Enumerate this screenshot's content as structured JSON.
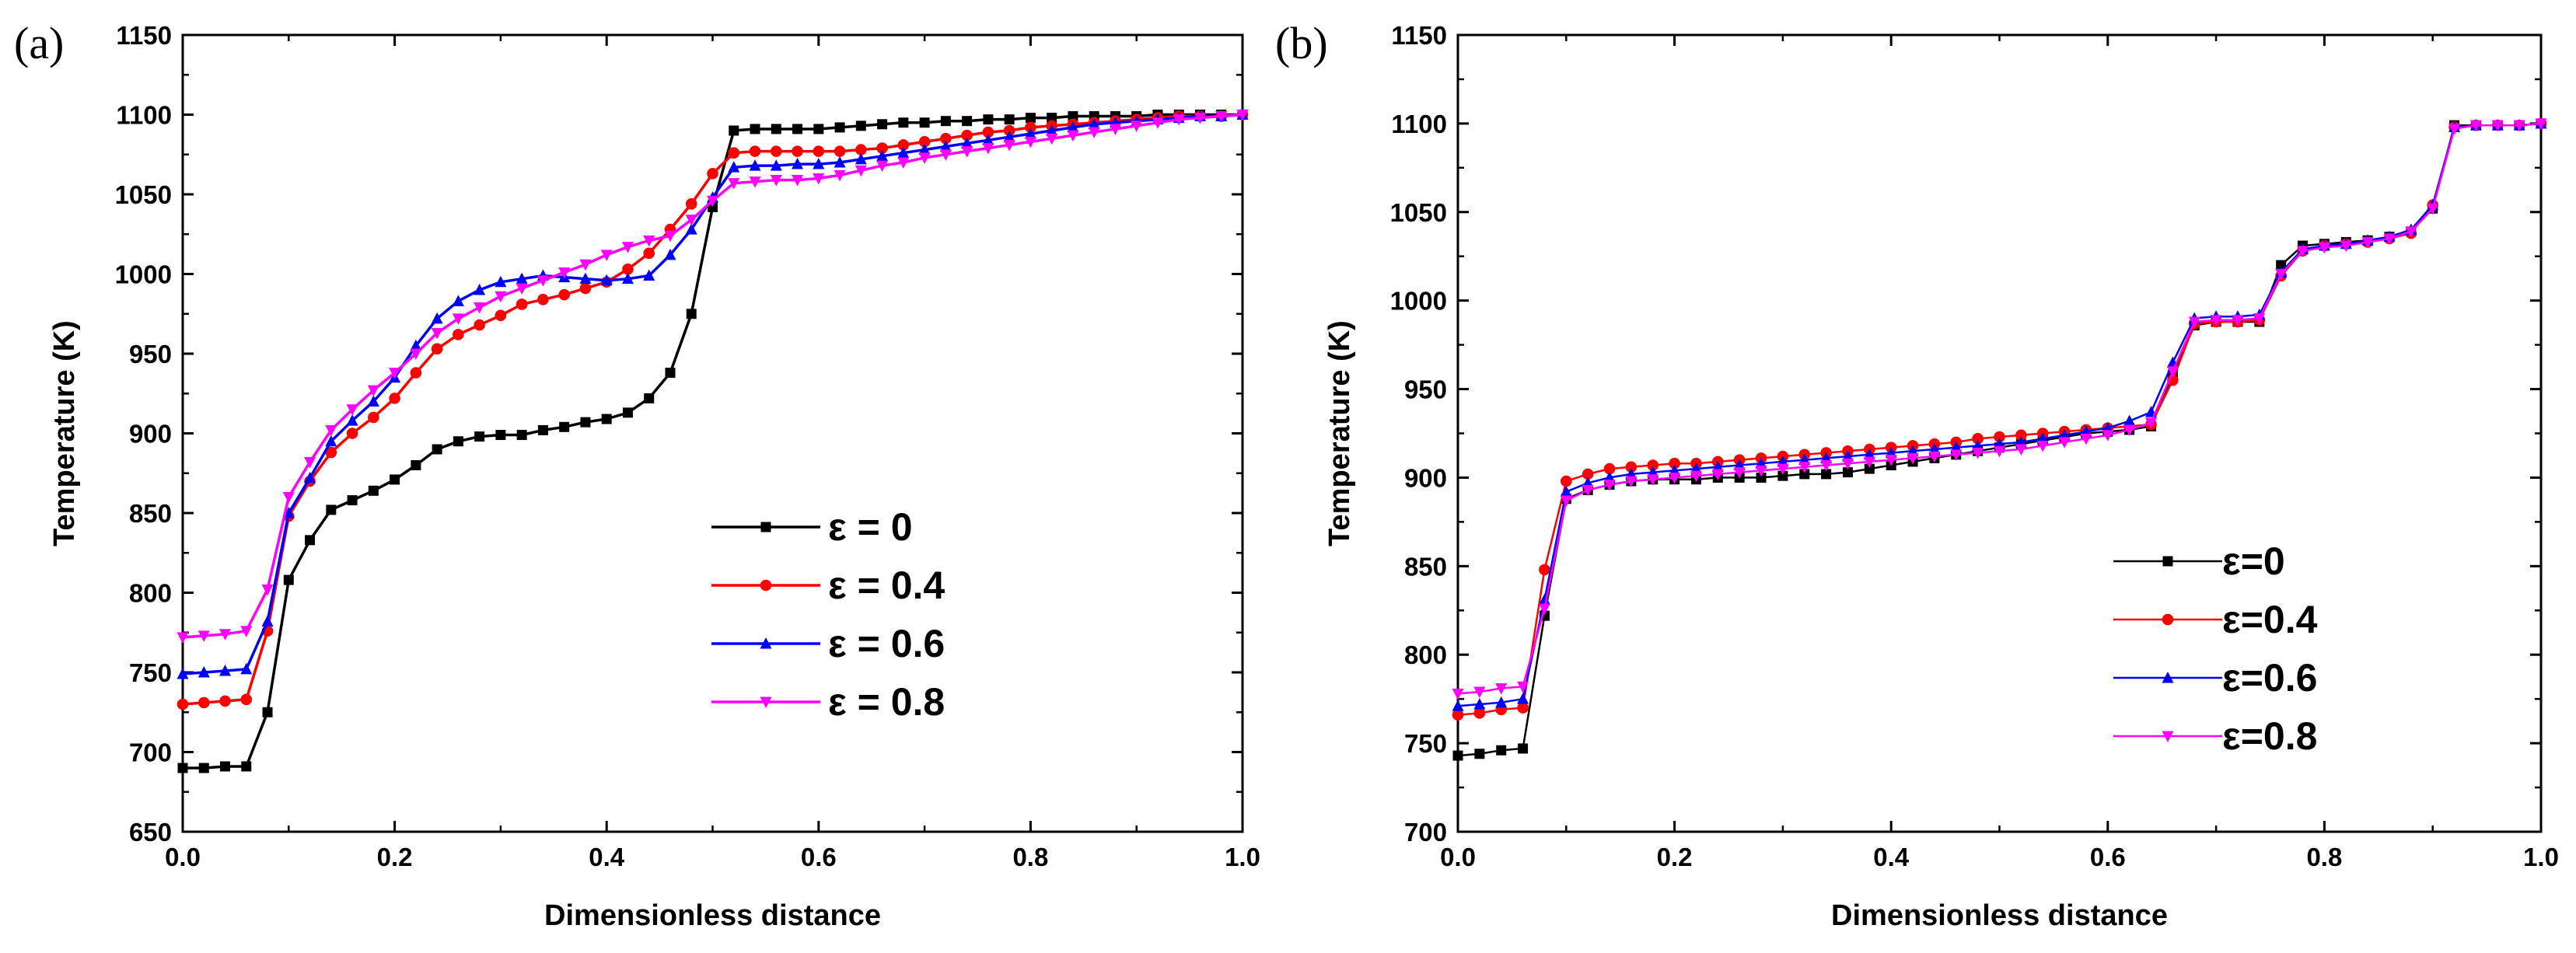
{
  "figure": {
    "panel_labels": [
      "(a)",
      "(b)"
    ]
  },
  "chart_data": [
    {
      "type": "line",
      "panel": "(a)",
      "xlabel": "Dimensionless distance",
      "ylabel": "Temperature (K)",
      "xlim": [
        0.0,
        1.0
      ],
      "ylim": [
        650,
        1150
      ],
      "xticks": [
        0.0,
        0.2,
        0.4,
        0.6,
        0.8,
        1.0
      ],
      "xtick_labels": [
        "0.0",
        "0.2",
        "0.4",
        "0.6",
        "0.8",
        "1.0"
      ],
      "yticks": [
        650,
        700,
        750,
        800,
        850,
        900,
        950,
        1000,
        1050,
        1100,
        1150
      ],
      "ytick_labels": [
        "650",
        "700",
        "750",
        "800",
        "850",
        "900",
        "950",
        "1000",
        "1050",
        "1100",
        "1150"
      ],
      "legend_position": "center-right",
      "x": [
        0.0,
        0.02,
        0.04,
        0.06,
        0.08,
        0.1,
        0.12,
        0.14,
        0.16,
        0.18,
        0.2,
        0.22,
        0.24,
        0.26,
        0.28,
        0.3,
        0.32,
        0.34,
        0.36,
        0.38,
        0.4,
        0.42,
        0.44,
        0.46,
        0.48,
        0.5,
        0.52,
        0.54,
        0.56,
        0.58,
        0.6,
        0.62,
        0.64,
        0.66,
        0.68,
        0.7,
        0.72,
        0.74,
        0.76,
        0.78,
        0.8,
        0.82,
        0.84,
        0.86,
        0.88,
        0.9,
        0.92,
        0.94,
        0.96,
        0.98,
        1.0
      ],
      "series": [
        {
          "name": "ε = 0",
          "color": "#000000",
          "marker": "square",
          "values": [
            690,
            690,
            691,
            691,
            725,
            808,
            833,
            852,
            858,
            864,
            871,
            880,
            890,
            895,
            898,
            899,
            899,
            902,
            904,
            907,
            909,
            913,
            922,
            938,
            975,
            1042,
            1090,
            1091,
            1091,
            1091,
            1091,
            1092,
            1093,
            1094,
            1095,
            1095,
            1096,
            1096,
            1097,
            1097,
            1098,
            1098,
            1099,
            1099,
            1099,
            1099,
            1100,
            1100,
            1100,
            1100,
            1100
          ]
        },
        {
          "name": "ε = 0.4",
          "color": "#ff0000",
          "marker": "circle",
          "values": [
            730,
            731,
            732,
            733,
            776,
            848,
            870,
            888,
            900,
            910,
            922,
            938,
            953,
            962,
            968,
            974,
            981,
            984,
            987,
            991,
            995,
            1003,
            1013,
            1028,
            1044,
            1063,
            1076,
            1077,
            1077,
            1077,
            1077,
            1077,
            1078,
            1079,
            1081,
            1083,
            1085,
            1087,
            1089,
            1090,
            1092,
            1093,
            1094,
            1095,
            1096,
            1097,
            1098,
            1099,
            1099,
            1099,
            1100
          ]
        },
        {
          "name": "ε = 0.6",
          "color": "#0000ff",
          "marker": "triangle-up",
          "values": [
            749,
            750,
            751,
            752,
            782,
            850,
            872,
            895,
            908,
            920,
            935,
            955,
            972,
            983,
            990,
            995,
            997,
            999,
            998,
            997,
            996,
            997,
            999,
            1012,
            1028,
            1048,
            1067,
            1068,
            1068,
            1069,
            1069,
            1070,
            1072,
            1074,
            1076,
            1078,
            1080,
            1082,
            1084,
            1086,
            1088,
            1090,
            1092,
            1094,
            1095,
            1096,
            1097,
            1098,
            1099,
            1099,
            1100
          ]
        },
        {
          "name": "ε = 0.8",
          "color": "#ff00ff",
          "marker": "triangle-down",
          "values": [
            772,
            773,
            774,
            776,
            802,
            860,
            882,
            902,
            915,
            927,
            938,
            950,
            963,
            972,
            979,
            986,
            991,
            996,
            1001,
            1006,
            1012,
            1017,
            1021,
            1024,
            1034,
            1046,
            1057,
            1058,
            1059,
            1059,
            1060,
            1062,
            1065,
            1068,
            1070,
            1073,
            1075,
            1077,
            1079,
            1081,
            1083,
            1085,
            1087,
            1089,
            1091,
            1093,
            1095,
            1097,
            1098,
            1099,
            1100
          ]
        }
      ]
    },
    {
      "type": "line",
      "panel": "(b)",
      "xlabel": "Dimensionless distance",
      "ylabel": "Temperature (K)",
      "xlim": [
        0.0,
        1.0
      ],
      "ylim": [
        700,
        1150
      ],
      "xticks": [
        0.0,
        0.2,
        0.4,
        0.6,
        0.8,
        1.0
      ],
      "xtick_labels": [
        "0.0",
        "0.2",
        "0.4",
        "0.6",
        "0.8",
        "1.0"
      ],
      "yticks": [
        700,
        750,
        800,
        850,
        900,
        950,
        1000,
        1050,
        1100,
        1150
      ],
      "ytick_labels": [
        "700",
        "750",
        "800",
        "850",
        "900",
        "950",
        "1000",
        "1050",
        "1100",
        "1150"
      ],
      "legend_position": "bottom-right",
      "x": [
        0.0,
        0.02,
        0.04,
        0.06,
        0.08,
        0.1,
        0.12,
        0.14,
        0.16,
        0.18,
        0.2,
        0.22,
        0.24,
        0.26,
        0.28,
        0.3,
        0.32,
        0.34,
        0.36,
        0.38,
        0.4,
        0.42,
        0.44,
        0.46,
        0.48,
        0.5,
        0.52,
        0.54,
        0.56,
        0.58,
        0.6,
        0.62,
        0.64,
        0.66,
        0.68,
        0.7,
        0.72,
        0.74,
        0.76,
        0.78,
        0.8,
        0.82,
        0.84,
        0.86,
        0.88,
        0.9,
        0.92,
        0.94,
        0.96,
        0.98,
        1.0
      ],
      "series": [
        {
          "name": "ε=0",
          "color": "#000000",
          "marker": "square",
          "values": [
            743,
            744,
            746,
            747,
            822,
            888,
            893,
            896,
            898,
            899,
            899,
            899,
            900,
            900,
            900,
            901,
            902,
            902,
            903,
            905,
            907,
            909,
            911,
            913,
            915,
            917,
            919,
            921,
            923,
            925,
            926,
            927,
            929,
            958,
            986,
            988,
            988,
            988,
            1020,
            1031,
            1032,
            1033,
            1034,
            1036,
            1039,
            1052,
            1099,
            1099,
            1099,
            1099,
            1100
          ]
        },
        {
          "name": "ε=0.4",
          "color": "#ff0000",
          "marker": "circle",
          "values": [
            766,
            767,
            769,
            770,
            848,
            898,
            902,
            905,
            906,
            907,
            908,
            908,
            909,
            910,
            911,
            912,
            913,
            914,
            915,
            916,
            917,
            918,
            919,
            920,
            922,
            923,
            924,
            925,
            926,
            927,
            928,
            929,
            930,
            955,
            987,
            988,
            988,
            989,
            1014,
            1028,
            1031,
            1032,
            1033,
            1035,
            1038,
            1054,
            1098,
            1099,
            1099,
            1099,
            1100
          ]
        },
        {
          "name": "ε=0.6",
          "color": "#0000ff",
          "marker": "triangle-up",
          "values": [
            771,
            772,
            773,
            775,
            831,
            892,
            897,
            900,
            902,
            903,
            904,
            905,
            906,
            907,
            908,
            909,
            910,
            911,
            912,
            913,
            914,
            915,
            916,
            917,
            918,
            919,
            920,
            922,
            924,
            926,
            928,
            932,
            937,
            965,
            990,
            991,
            991,
            992,
            1016,
            1029,
            1031,
            1032,
            1034,
            1036,
            1040,
            1054,
            1098,
            1099,
            1099,
            1099,
            1100
          ]
        },
        {
          "name": "ε=0.8",
          "color": "#ff00ff",
          "marker": "triangle-down",
          "values": [
            778,
            779,
            781,
            782,
            826,
            887,
            893,
            896,
            898,
            899,
            900,
            901,
            902,
            903,
            904,
            905,
            906,
            907,
            908,
            909,
            910,
            911,
            912,
            913,
            914,
            915,
            916,
            918,
            920,
            922,
            924,
            927,
            931,
            960,
            988,
            989,
            989,
            990,
            1015,
            1028,
            1030,
            1031,
            1033,
            1035,
            1039,
            1052,
            1097,
            1099,
            1099,
            1099,
            1100
          ]
        }
      ]
    }
  ]
}
